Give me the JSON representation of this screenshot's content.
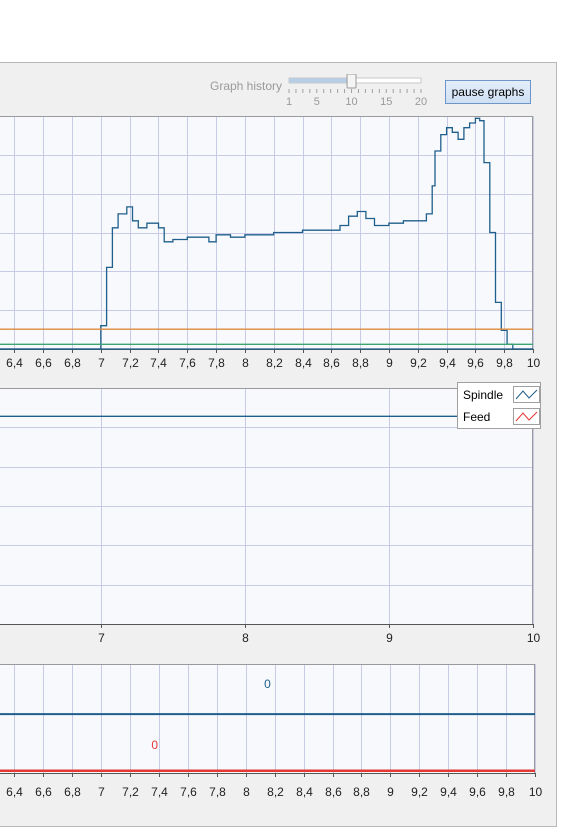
{
  "controls": {
    "graph_history_label": "Graph history",
    "slider": {
      "min": 1,
      "max": 20,
      "value": 10,
      "tick_labels": [
        "1",
        "5",
        "10",
        "15",
        "20"
      ]
    },
    "pause_button_label": "pause graphs"
  },
  "legend": {
    "items": [
      {
        "label": "Spindle",
        "color": "#1f5f8b"
      },
      {
        "label": "Feed",
        "color": "#e53935"
      }
    ]
  },
  "chart_data": [
    {
      "type": "line",
      "x_ticks": [
        "6,4",
        "6,6",
        "6,8",
        "7",
        "7,2",
        "7,4",
        "7,6",
        "7,8",
        "8",
        "8,2",
        "8,4",
        "8,6",
        "8,8",
        "9",
        "9,2",
        "9,4",
        "9,6",
        "9,8",
        "10"
      ],
      "xlim": [
        6.3,
        10
      ],
      "ylim": [
        0,
        100
      ],
      "series": [
        {
          "color": "#1f5f8b",
          "x": [
            6.3,
            6.95,
            7.0,
            7.04,
            7.08,
            7.12,
            7.18,
            7.22,
            7.26,
            7.32,
            7.4,
            7.44,
            7.5,
            7.6,
            7.7,
            7.75,
            7.8,
            7.9,
            8.0,
            8.1,
            8.2,
            8.3,
            8.4,
            8.5,
            8.6,
            8.66,
            8.72,
            8.78,
            8.84,
            8.9,
            9.0,
            9.1,
            9.2,
            9.26,
            9.3,
            9.32,
            9.36,
            9.4,
            9.44,
            9.48,
            9.52,
            9.56,
            9.6,
            9.63,
            9.66,
            9.7,
            9.74,
            9.78,
            9.82,
            9.86,
            10
          ],
          "y": [
            0,
            0,
            10,
            35,
            52,
            58,
            61,
            55,
            52,
            54,
            52,
            46,
            47,
            48,
            48,
            46,
            49,
            48,
            49,
            49,
            50,
            50,
            51,
            51,
            51,
            53,
            57,
            59,
            56,
            53,
            54,
            55,
            55,
            58,
            70,
            85,
            92,
            95,
            93,
            90,
            95,
            97,
            99,
            98,
            80,
            50,
            20,
            8,
            2,
            0,
            0
          ]
        },
        {
          "color": "#e08a3a",
          "x": [
            6.3,
            10
          ],
          "y": [
            8.5,
            8.5
          ]
        },
        {
          "color": "#3aa66f",
          "x": [
            6.3,
            10
          ],
          "y": [
            2,
            2
          ]
        },
        {
          "color": "#1f5f8b",
          "x": [
            6.3,
            10
          ],
          "y": [
            0,
            0
          ]
        }
      ],
      "grid": true
    },
    {
      "type": "line",
      "x_ticks": [
        "7",
        "8",
        "9",
        "10"
      ],
      "xlim": [
        6.3,
        10
      ],
      "ylim": [
        0,
        100
      ],
      "series": [
        {
          "name": "Spindle",
          "color": "#1f5f8b",
          "x": [
            6.3,
            10
          ],
          "y": [
            88,
            88
          ]
        }
      ],
      "legend": "top-right",
      "grid": true
    },
    {
      "type": "line",
      "x_ticks": [
        "6,4",
        "6,6",
        "6,8",
        "7",
        "7,2",
        "7,4",
        "7,6",
        "7,8",
        "8",
        "8,2",
        "8,4",
        "8,6",
        "8,8",
        "9",
        "9,2",
        "9,4",
        "9,6",
        "9,8",
        "10"
      ],
      "xlim": [
        6.3,
        10
      ],
      "ylim": [
        0,
        100
      ],
      "series": [
        {
          "color": "#1f5f8b",
          "x": [
            6.3,
            10
          ],
          "y": [
            54,
            54
          ]
        },
        {
          "color": "#e53935",
          "x": [
            6.3,
            10
          ],
          "y": [
            2,
            2
          ]
        }
      ],
      "annotations": [
        {
          "text": "0",
          "x": 8.15,
          "y": 78,
          "color": "#1f5f8b"
        },
        {
          "text": "0",
          "x": 7.37,
          "y": 22,
          "color": "#e53935"
        }
      ],
      "grid": true
    }
  ]
}
